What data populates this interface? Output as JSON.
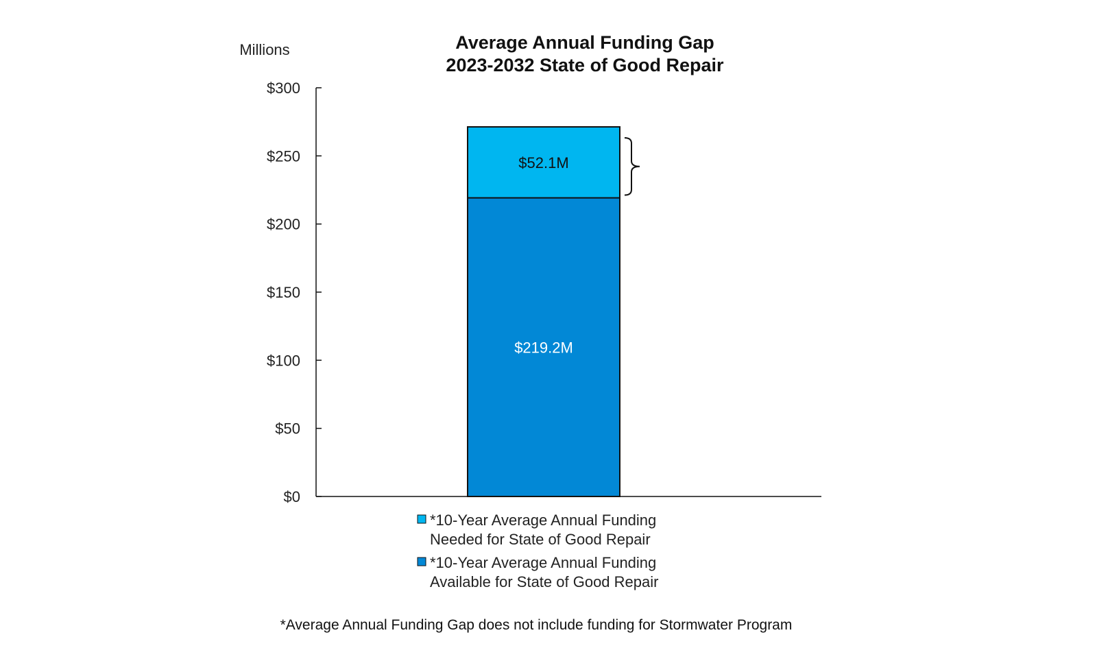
{
  "chart_data": {
    "type": "bar",
    "stacked": true,
    "title": [
      "Average Annual Funding Gap",
      "2023-2032 State of Good Repair"
    ],
    "ylabel": "Millions",
    "xlabel": "",
    "ylim": [
      0,
      300
    ],
    "y_ticks": [
      0,
      50,
      100,
      150,
      200,
      250,
      300
    ],
    "y_tick_labels": [
      "$0",
      "$50",
      "$100",
      "$150",
      "$200",
      "$250",
      "$300"
    ],
    "categories": [
      ""
    ],
    "grid": false,
    "legend_position": "bottom",
    "series": [
      {
        "name": "available",
        "legend_lines": [
          "*10-Year Average Annual Funding",
          "Available for State of Good Repair"
        ],
        "values": [
          219.2
        ],
        "data_label": "$219.2M",
        "color": "#0288D6",
        "label_color": "#ffffff"
      },
      {
        "name": "gap",
        "legend_lines": [
          "*10-Year Average Annual Funding",
          "Needed for State of Good Repair"
        ],
        "values": [
          52.1
        ],
        "data_label": "$52.1M",
        "color": "#00B6F0",
        "label_color": "#111111"
      }
    ],
    "footnote": "*Average Annual Funding Gap does not include funding for Stormwater Program"
  }
}
